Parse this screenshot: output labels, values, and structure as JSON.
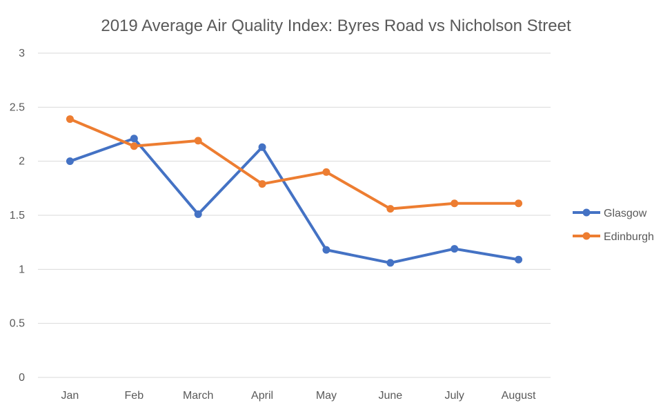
{
  "chart_data": {
    "type": "line",
    "title": "2019 Average Air Quality Index: Byres Road vs Nicholson Street",
    "xlabel": "",
    "ylabel": "",
    "categories": [
      "Jan",
      "Feb",
      "March",
      "April",
      "May",
      "June",
      "July",
      "August"
    ],
    "ylim": [
      0,
      3
    ],
    "yticks": [
      0,
      0.5,
      1,
      1.5,
      2,
      2.5,
      3
    ],
    "ytick_labels": [
      "0",
      "0.5",
      "1",
      "1.5",
      "2",
      "2.5",
      "3"
    ],
    "grid": true,
    "legend_position": "right",
    "series": [
      {
        "name": "Glasgow",
        "color": "#4472c4",
        "values": [
          2.0,
          2.21,
          1.51,
          2.13,
          1.18,
          1.06,
          1.19,
          1.09
        ]
      },
      {
        "name": "Edinburgh",
        "color": "#ed7d31",
        "values": [
          2.39,
          2.14,
          2.19,
          1.79,
          1.9,
          1.56,
          1.61,
          1.61
        ]
      }
    ]
  }
}
